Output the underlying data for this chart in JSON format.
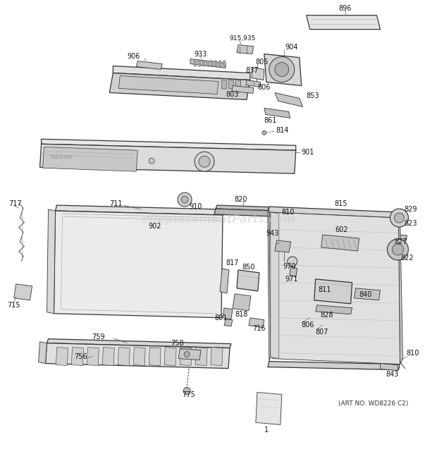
{
  "bg_color": "#ffffff",
  "line_color": "#333333",
  "lc2": "#555555",
  "gray1": "#e8e8e8",
  "gray2": "#d5d5d5",
  "gray3": "#c0c0c0",
  "gray4": "#b0b0b0",
  "gray5": "#a0a0a0",
  "watermark_text": "eReplacementParts.com",
  "watermark_color": "#cccccc",
  "art_no": "(ART NO. WD8226 C2)",
  "fig_width": 6.2,
  "fig_height": 6.61,
  "dpi": 100
}
